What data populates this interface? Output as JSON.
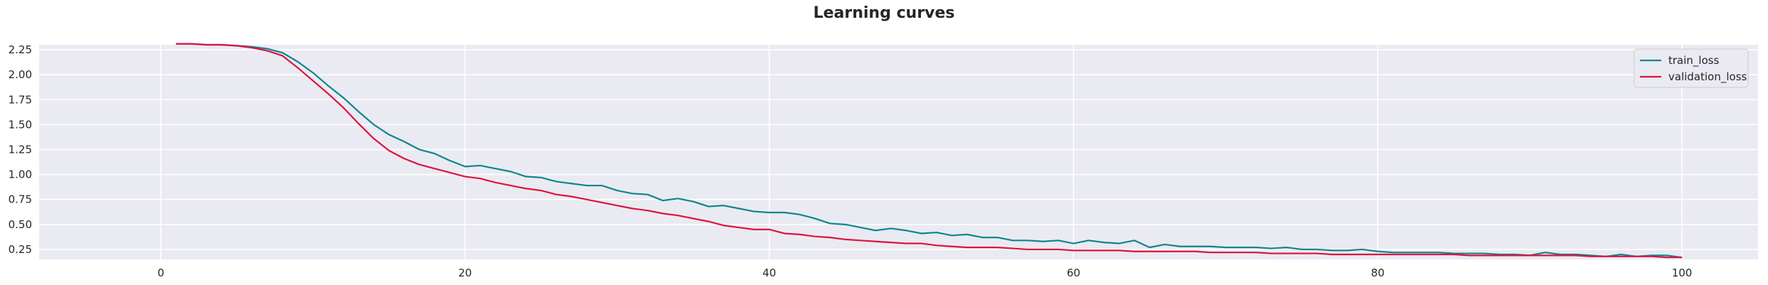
{
  "colors": {
    "plot_background": "#eaeaf2",
    "grid": "#ffffff",
    "train_loss": "#0e868b",
    "validation_loss": "#dc143c"
  },
  "chart_data": {
    "type": "line",
    "title": "Learning curves",
    "xlabel": "",
    "ylabel": "",
    "xlim": [
      -8,
      105
    ],
    "ylim": [
      0.15,
      2.3
    ],
    "xticks": [
      0,
      20,
      40,
      60,
      80,
      100
    ],
    "yticks": [
      0.25,
      0.5,
      0.75,
      1.0,
      1.25,
      1.5,
      1.75,
      2.0,
      2.25
    ],
    "ytick_labels": [
      "0.25",
      "0.50",
      "0.75",
      "1.00",
      "1.25",
      "1.50",
      "1.75",
      "2.00",
      "2.25"
    ],
    "grid": true,
    "legend_position": "top-right",
    "x": [
      1,
      2,
      3,
      4,
      5,
      6,
      7,
      8,
      9,
      10,
      11,
      12,
      13,
      14,
      15,
      16,
      17,
      18,
      19,
      20,
      21,
      22,
      23,
      24,
      25,
      26,
      27,
      28,
      29,
      30,
      31,
      32,
      33,
      34,
      35,
      36,
      37,
      38,
      39,
      40,
      41,
      42,
      43,
      44,
      45,
      46,
      47,
      48,
      49,
      50,
      51,
      52,
      53,
      54,
      55,
      56,
      57,
      58,
      59,
      60,
      61,
      62,
      63,
      64,
      65,
      66,
      67,
      68,
      69,
      70,
      71,
      72,
      73,
      74,
      75,
      76,
      77,
      78,
      79,
      80,
      81,
      82,
      83,
      84,
      85,
      86,
      87,
      88,
      89,
      90,
      91,
      92,
      93,
      94,
      95,
      96,
      97,
      98,
      99,
      100
    ],
    "series": [
      {
        "name": "train_loss",
        "values": [
          2.31,
          2.31,
          2.3,
          2.3,
          2.29,
          2.28,
          2.26,
          2.22,
          2.13,
          2.02,
          1.89,
          1.77,
          1.63,
          1.5,
          1.4,
          1.33,
          1.25,
          1.21,
          1.14,
          1.08,
          1.09,
          1.06,
          1.03,
          0.98,
          0.97,
          0.93,
          0.91,
          0.89,
          0.89,
          0.84,
          0.81,
          0.8,
          0.74,
          0.76,
          0.73,
          0.68,
          0.69,
          0.66,
          0.63,
          0.62,
          0.62,
          0.6,
          0.56,
          0.51,
          0.5,
          0.47,
          0.44,
          0.46,
          0.44,
          0.41,
          0.42,
          0.39,
          0.4,
          0.37,
          0.37,
          0.34,
          0.34,
          0.33,
          0.34,
          0.31,
          0.34,
          0.32,
          0.31,
          0.34,
          0.27,
          0.3,
          0.28,
          0.28,
          0.28,
          0.27,
          0.27,
          0.27,
          0.26,
          0.27,
          0.25,
          0.25,
          0.24,
          0.24,
          0.25,
          0.23,
          0.22,
          0.22,
          0.22,
          0.22,
          0.21,
          0.21,
          0.21,
          0.2,
          0.2,
          0.19,
          0.22,
          0.2,
          0.2,
          0.19,
          0.18,
          0.2,
          0.18,
          0.19,
          0.19,
          0.17
        ]
      },
      {
        "name": "validation_loss",
        "values": [
          2.31,
          2.31,
          2.3,
          2.3,
          2.29,
          2.27,
          2.24,
          2.19,
          2.07,
          1.94,
          1.81,
          1.67,
          1.51,
          1.36,
          1.24,
          1.16,
          1.1,
          1.06,
          1.02,
          0.98,
          0.96,
          0.92,
          0.89,
          0.86,
          0.84,
          0.8,
          0.78,
          0.75,
          0.72,
          0.69,
          0.66,
          0.64,
          0.61,
          0.59,
          0.56,
          0.53,
          0.49,
          0.47,
          0.45,
          0.45,
          0.41,
          0.4,
          0.38,
          0.37,
          0.35,
          0.34,
          0.33,
          0.32,
          0.31,
          0.31,
          0.29,
          0.28,
          0.27,
          0.27,
          0.27,
          0.26,
          0.25,
          0.25,
          0.25,
          0.24,
          0.24,
          0.24,
          0.24,
          0.23,
          0.23,
          0.23,
          0.23,
          0.23,
          0.22,
          0.22,
          0.22,
          0.22,
          0.21,
          0.21,
          0.21,
          0.21,
          0.2,
          0.2,
          0.2,
          0.2,
          0.2,
          0.2,
          0.2,
          0.2,
          0.2,
          0.19,
          0.19,
          0.19,
          0.19,
          0.19,
          0.19,
          0.19,
          0.19,
          0.18,
          0.18,
          0.18,
          0.18,
          0.18,
          0.17,
          0.17
        ]
      }
    ]
  }
}
